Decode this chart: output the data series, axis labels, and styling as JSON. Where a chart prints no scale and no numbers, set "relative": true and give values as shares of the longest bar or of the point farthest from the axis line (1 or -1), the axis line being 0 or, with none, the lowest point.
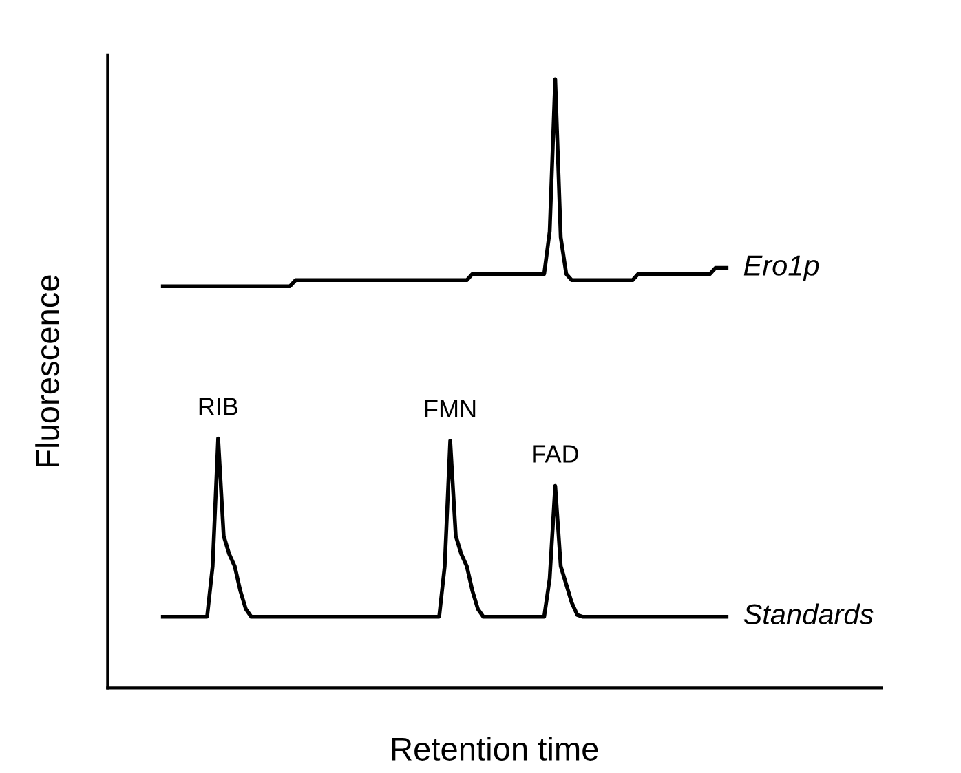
{
  "chart_data": {
    "type": "line",
    "relative": true,
    "xlabel": "Retention time",
    "ylabel": "Fluorescence",
    "legend": false,
    "grid": false,
    "categories": [
      null,
      null,
      null,
      null,
      null,
      null,
      null,
      null,
      null,
      null,
      null,
      null,
      null,
      null,
      null,
      null,
      null,
      null,
      null,
      null,
      null,
      null,
      null,
      null,
      null,
      null,
      null,
      null,
      null,
      null,
      null,
      null,
      null,
      null,
      null,
      null,
      null,
      null,
      null,
      null,
      null,
      null,
      null,
      null,
      null,
      null,
      null,
      null,
      null,
      null,
      null,
      null,
      null,
      null,
      null,
      null,
      null,
      null,
      null,
      null,
      null,
      null,
      null,
      null,
      null,
      null,
      null,
      null,
      null,
      null,
      null,
      null,
      null,
      null,
      null,
      null,
      null,
      null,
      null,
      null,
      null,
      null,
      null,
      null,
      null,
      null,
      null,
      null,
      null,
      null,
      null,
      null,
      null,
      null,
      null,
      null,
      null,
      null,
      null,
      null,
      null,
      null,
      null
    ],
    "series": [
      {
        "name": "Ero1p",
        "color": "#000000",
        "values": [
          0.66,
          0.66,
          0.66,
          0.66,
          0.66,
          0.66,
          0.66,
          0.66,
          0.66,
          0.66,
          0.66,
          0.66,
          0.66,
          0.66,
          0.66,
          0.66,
          0.66,
          0.66,
          0.66,
          0.66,
          0.66,
          0.66,
          0.66,
          0.66,
          0.67,
          0.67,
          0.67,
          0.67,
          0.67,
          0.67,
          0.67,
          0.67,
          0.67,
          0.67,
          0.67,
          0.67,
          0.67,
          0.67,
          0.67,
          0.67,
          0.67,
          0.67,
          0.67,
          0.67,
          0.67,
          0.67,
          0.67,
          0.67,
          0.67,
          0.67,
          0.67,
          0.67,
          0.67,
          0.67,
          0.67,
          0.67,
          0.68,
          0.68,
          0.68,
          0.68,
          0.68,
          0.68,
          0.68,
          0.68,
          0.68,
          0.68,
          0.68,
          0.68,
          0.68,
          0.68,
          0.75,
          1.0,
          0.74,
          0.68,
          0.67,
          0.67,
          0.67,
          0.67,
          0.67,
          0.67,
          0.67,
          0.67,
          0.67,
          0.67,
          0.67,
          0.67,
          0.68,
          0.68,
          0.68,
          0.68,
          0.68,
          0.68,
          0.68,
          0.68,
          0.68,
          0.68,
          0.68,
          0.68,
          0.68,
          0.68,
          0.69,
          0.69,
          0.69
        ]
      },
      {
        "name": "Standards",
        "color": "#000000",
        "values": [
          0.117,
          0.117,
          0.117,
          0.117,
          0.117,
          0.117,
          0.117,
          0.117,
          0.117,
          0.2,
          0.41,
          0.25,
          0.22,
          0.2,
          0.16,
          0.13,
          0.117,
          0.117,
          0.117,
          0.117,
          0.117,
          0.117,
          0.117,
          0.117,
          0.117,
          0.117,
          0.117,
          0.117,
          0.117,
          0.117,
          0.117,
          0.117,
          0.117,
          0.117,
          0.117,
          0.117,
          0.117,
          0.117,
          0.117,
          0.117,
          0.117,
          0.117,
          0.117,
          0.117,
          0.117,
          0.117,
          0.117,
          0.117,
          0.117,
          0.117,
          0.117,
          0.2,
          0.406,
          0.25,
          0.22,
          0.2,
          0.16,
          0.13,
          0.117,
          0.117,
          0.117,
          0.117,
          0.117,
          0.117,
          0.117,
          0.117,
          0.117,
          0.117,
          0.117,
          0.117,
          0.18,
          0.332,
          0.2,
          0.17,
          0.14,
          0.12,
          0.117,
          0.117,
          0.117,
          0.117,
          0.117,
          0.117,
          0.117,
          0.117,
          0.117,
          0.117,
          0.117,
          0.117,
          0.117,
          0.117,
          0.117,
          0.117,
          0.117,
          0.117,
          0.117,
          0.117,
          0.117,
          0.117,
          0.117,
          0.117,
          0.117,
          0.117,
          0.117
        ]
      }
    ],
    "annotations": [
      "RIB",
      "FMN",
      "FAD"
    ]
  }
}
